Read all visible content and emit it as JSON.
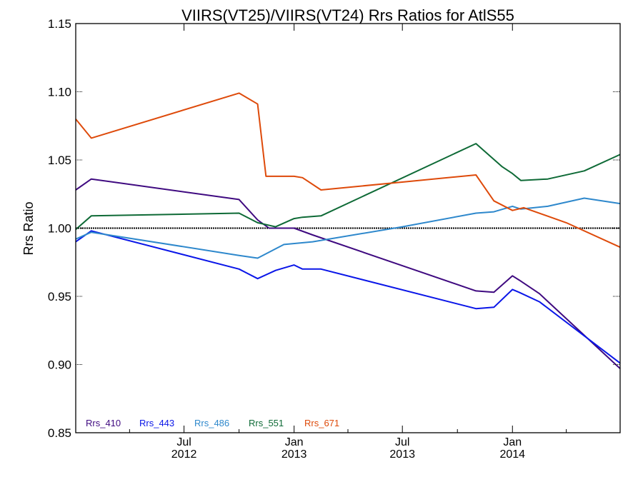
{
  "chart_data": {
    "type": "line",
    "title": "VIIRS(VT25)/VIIRS(VT24)  Rrs Ratios for AtlS55",
    "xlabel": "",
    "ylabel": "Rrs Ratio",
    "xlim": [
      "2012-01-02",
      "2014-06-30"
    ],
    "ylim": [
      0.85,
      1.15
    ],
    "yticks": [
      {
        "value": 0.85,
        "label": "0.85"
      },
      {
        "value": 0.9,
        "label": "0.90"
      },
      {
        "value": 0.95,
        "label": "0.95"
      },
      {
        "value": 1.0,
        "label": "1.00"
      },
      {
        "value": 1.05,
        "label": "1.05"
      },
      {
        "value": 1.1,
        "label": "1.10"
      },
      {
        "value": 1.15,
        "label": "1.15"
      }
    ],
    "xticks": [
      {
        "date": "2012-07-01",
        "line1": "Jul",
        "line2": "2012"
      },
      {
        "date": "2013-01-01",
        "line1": "Jan",
        "line2": "2013"
      },
      {
        "date": "2013-07-01",
        "line1": "Jul",
        "line2": "2013"
      },
      {
        "date": "2014-01-01",
        "line1": "Jan",
        "line2": "2014"
      }
    ],
    "reference_line": 1.0,
    "legend_position": "bottom-left",
    "series": [
      {
        "name": "Rrs_410",
        "color": "#3f0a80",
        "points": [
          [
            "2012-01-02",
            1.028
          ],
          [
            "2012-01-28",
            1.036
          ],
          [
            "2012-10-01",
            1.021
          ],
          [
            "2012-11-01",
            1.006
          ],
          [
            "2012-11-20",
            1.0
          ],
          [
            "2013-01-01",
            1.0
          ],
          [
            "2013-02-01",
            0.995
          ],
          [
            "2013-11-01",
            0.954
          ],
          [
            "2013-12-01",
            0.953
          ],
          [
            "2014-01-01",
            0.965
          ],
          [
            "2014-01-12",
            0.962
          ],
          [
            "2014-02-15",
            0.952
          ],
          [
            "2014-06-30",
            0.897
          ]
        ]
      },
      {
        "name": "Rrs_443",
        "color": "#0a16e8",
        "points": [
          [
            "2012-01-02",
            0.99
          ],
          [
            "2012-01-28",
            0.998
          ],
          [
            "2012-10-01",
            0.97
          ],
          [
            "2012-11-01",
            0.963
          ],
          [
            "2012-12-01",
            0.969
          ],
          [
            "2013-01-01",
            0.973
          ],
          [
            "2013-01-15",
            0.97
          ],
          [
            "2013-02-15",
            0.97
          ],
          [
            "2013-11-01",
            0.941
          ],
          [
            "2013-12-01",
            0.942
          ],
          [
            "2014-01-01",
            0.955
          ],
          [
            "2014-01-12",
            0.953
          ],
          [
            "2014-02-15",
            0.946
          ],
          [
            "2014-06-30",
            0.901
          ]
        ]
      },
      {
        "name": "Rrs_486",
        "color": "#2e88cc",
        "points": [
          [
            "2012-01-02",
            0.992
          ],
          [
            "2012-01-28",
            0.997
          ],
          [
            "2012-10-01",
            0.98
          ],
          [
            "2012-11-01",
            0.978
          ],
          [
            "2012-12-15",
            0.988
          ],
          [
            "2013-02-01",
            0.99
          ],
          [
            "2013-07-01",
            1.001
          ],
          [
            "2013-11-01",
            1.011
          ],
          [
            "2013-12-01",
            1.012
          ],
          [
            "2014-01-01",
            1.016
          ],
          [
            "2014-01-15",
            1.014
          ],
          [
            "2014-03-01",
            1.016
          ],
          [
            "2014-05-01",
            1.022
          ],
          [
            "2014-06-30",
            1.018
          ]
        ]
      },
      {
        "name": "Rrs_551",
        "color": "#0e6a36",
        "points": [
          [
            "2012-01-02",
            0.999
          ],
          [
            "2012-01-28",
            1.009
          ],
          [
            "2012-10-01",
            1.011
          ],
          [
            "2012-11-01",
            1.004
          ],
          [
            "2012-12-01",
            1.001
          ],
          [
            "2013-01-01",
            1.007
          ],
          [
            "2013-01-15",
            1.008
          ],
          [
            "2013-02-15",
            1.009
          ],
          [
            "2013-11-01",
            1.062
          ],
          [
            "2013-12-15",
            1.045
          ],
          [
            "2014-01-01",
            1.04
          ],
          [
            "2014-01-15",
            1.035
          ],
          [
            "2014-03-01",
            1.036
          ],
          [
            "2014-05-01",
            1.042
          ],
          [
            "2014-06-30",
            1.054
          ]
        ]
      },
      {
        "name": "Rrs_671",
        "color": "#de4a0a",
        "points": [
          [
            "2012-01-02",
            1.08
          ],
          [
            "2012-01-28",
            1.066
          ],
          [
            "2012-10-01",
            1.099
          ],
          [
            "2012-11-01",
            1.091
          ],
          [
            "2012-11-15",
            1.038
          ],
          [
            "2013-01-01",
            1.038
          ],
          [
            "2013-01-15",
            1.037
          ],
          [
            "2013-02-15",
            1.028
          ],
          [
            "2013-11-01",
            1.039
          ],
          [
            "2013-12-01",
            1.02
          ],
          [
            "2014-01-01",
            1.013
          ],
          [
            "2014-01-20",
            1.015
          ],
          [
            "2014-04-01",
            1.004
          ],
          [
            "2014-06-30",
            0.986
          ]
        ]
      }
    ]
  }
}
